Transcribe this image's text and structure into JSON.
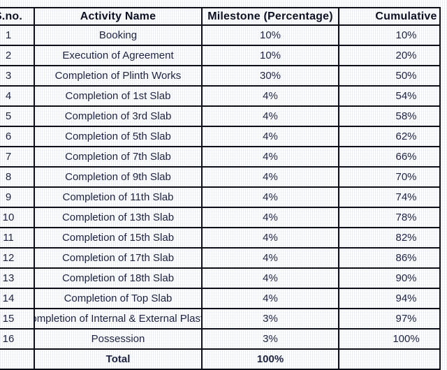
{
  "colors": {
    "border": "#0c0e18",
    "text": "#1d2240",
    "header_text": "#0d1022",
    "background": "#ffffff"
  },
  "chart_data": {
    "type": "table",
    "title": "",
    "columns": [
      "S.no.",
      "Activity Name",
      "Milestone (Percentage)",
      "Cumulative"
    ],
    "rows": [
      [
        "1",
        "Booking",
        "10%",
        "10%"
      ],
      [
        "2",
        "Execution of Agreement",
        "10%",
        "20%"
      ],
      [
        "3",
        "Completion of Plinth Works",
        "30%",
        "50%"
      ],
      [
        "4",
        "Completion of 1st Slab",
        "4%",
        "54%"
      ],
      [
        "5",
        "Completion of 3rd Slab",
        "4%",
        "58%"
      ],
      [
        "6",
        "Completion of 5th Slab",
        "4%",
        "62%"
      ],
      [
        "7",
        "Completion of 7th Slab",
        "4%",
        "66%"
      ],
      [
        "8",
        "Completion of 9th Slab",
        "4%",
        "70%"
      ],
      [
        "9",
        "Completion of 11th Slab",
        "4%",
        "74%"
      ],
      [
        "10",
        "Completion of 13th Slab",
        "4%",
        "78%"
      ],
      [
        "11",
        "Completion of 15th Slab",
        "4%",
        "82%"
      ],
      [
        "12",
        "Completion of 17th Slab",
        "4%",
        "86%"
      ],
      [
        "13",
        "Completion of 18th Slab",
        "4%",
        "90%"
      ],
      [
        "14",
        "Completion of Top Slab",
        "4%",
        "94%"
      ],
      [
        "15",
        "Completion of Internal & External Plaster",
        "3%",
        "97%"
      ],
      [
        "16",
        "Possession",
        "3%",
        "100%"
      ],
      [
        "",
        "Total",
        "100%",
        ""
      ]
    ]
  }
}
